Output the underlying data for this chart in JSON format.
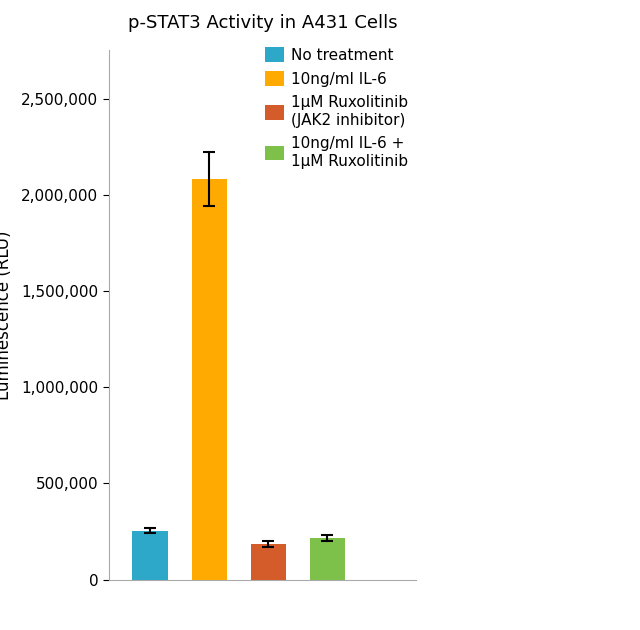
{
  "title": "p-STAT3 Activity in A431 Cells",
  "ylabel": "Luminescence (RLU)",
  "values": [
    255000,
    2080000,
    185000,
    215000
  ],
  "errors": [
    12000,
    140000,
    18000,
    15000
  ],
  "bar_colors": [
    "#2EA8C8",
    "#FFAA00",
    "#D45B2A",
    "#7DC14A"
  ],
  "legend_labels": [
    "No treatment",
    "10ng/ml IL-6",
    "1μM Ruxolitinib\n(JAK2 inhibitor)",
    "10ng/ml IL-6 +\n1μM Ruxolitinib"
  ],
  "legend_colors": [
    "#2EA8C8",
    "#FFAA00",
    "#D45B2A",
    "#7DC14A"
  ],
  "ylim": [
    0,
    2750000
  ],
  "yticks": [
    0,
    500000,
    1000000,
    1500000,
    2000000,
    2500000
  ],
  "title_fontsize": 13,
  "axis_label_fontsize": 12,
  "tick_fontsize": 11,
  "legend_fontsize": 11,
  "background_color": "#ffffff",
  "bar_width": 0.6,
  "figsize": [
    6.4,
    6.3
  ],
  "dpi": 100
}
